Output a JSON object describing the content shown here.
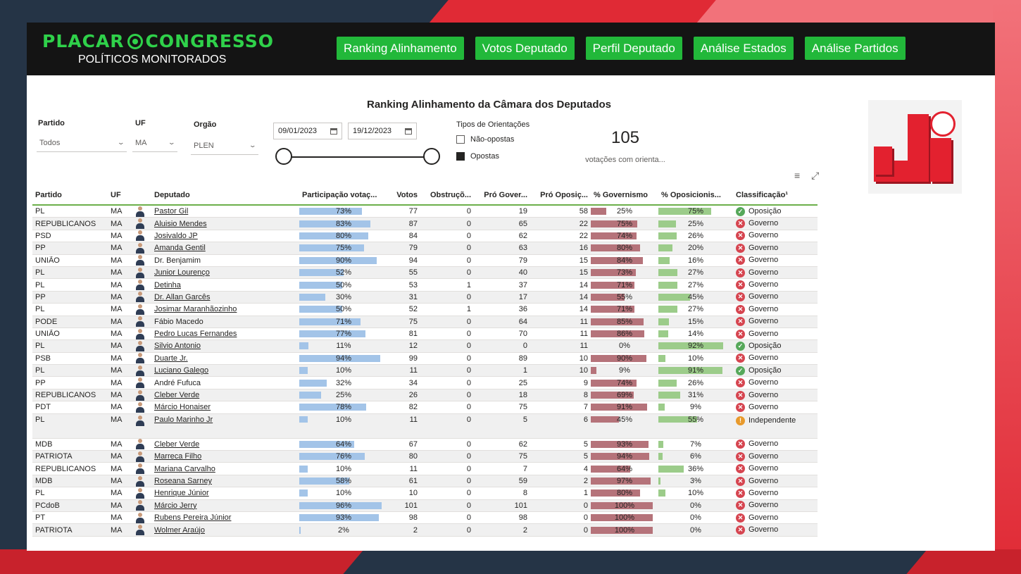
{
  "header": {
    "logo_left": "PLACAR",
    "logo_right": "CONGRESSO",
    "subtitle": "POLÍTICOS MONITORADOS",
    "nav": [
      "Ranking Alinhamento",
      "Votos Deputado",
      "Perfil Deputado",
      "Análise Estados",
      "Análise Partidos"
    ]
  },
  "report": {
    "title": "Ranking Alinhamento da Câmara dos Deputados"
  },
  "filters": {
    "partido_label": "Partido",
    "partido_value": "Todos",
    "uf_label": "UF",
    "uf_value": "MA",
    "orgao_label": "Orgão",
    "orgao_value": "PLEN",
    "date_start": "09/01/2023",
    "date_end": "19/12/2023",
    "slider_start": 0,
    "slider_end": 1,
    "tipos_title": "Tipos de Orientações",
    "tipos": [
      {
        "label": "Não-opostas",
        "checked": false
      },
      {
        "label": "Opostas",
        "checked": true
      }
    ]
  },
  "kpi": {
    "value": "105",
    "label": "votações com orienta..."
  },
  "table": {
    "columns": [
      "Partido",
      "UF",
      "",
      "Deputado",
      "Participação votaç...",
      "Votos",
      "Obstruçõ...",
      "Pró Gover...",
      "Pró Oposiç...",
      "% Governismo",
      "% Oposicionis...",
      "Classificação¹"
    ],
    "rows": [
      {
        "partido": "PL",
        "uf": "MA",
        "dep": "Pastor Gil",
        "part": 73,
        "votos": "77",
        "obs": "0",
        "pgov": "19",
        "popo": "58",
        "gov": 25,
        "opo": 75,
        "class": "Oposição",
        "underline": true
      },
      {
        "partido": "REPUBLICANOS",
        "uf": "MA",
        "dep": "Aluisio Mendes",
        "part": 83,
        "votos": "87",
        "obs": "0",
        "pgov": "65",
        "popo": "22",
        "gov": 75,
        "opo": 25,
        "class": "Governo",
        "underline": true
      },
      {
        "partido": "PSD",
        "uf": "MA",
        "dep": "Josivaldo JP",
        "part": 80,
        "votos": "84",
        "obs": "0",
        "pgov": "62",
        "popo": "22",
        "gov": 74,
        "opo": 26,
        "class": "Governo",
        "underline": true
      },
      {
        "partido": "PP",
        "uf": "MA",
        "dep": "Amanda Gentil",
        "part": 75,
        "votos": "79",
        "obs": "0",
        "pgov": "63",
        "popo": "16",
        "gov": 80,
        "opo": 20,
        "class": "Governo",
        "underline": true
      },
      {
        "partido": "UNIÃO",
        "uf": "MA",
        "dep": "Dr. Benjamim",
        "part": 90,
        "votos": "94",
        "obs": "0",
        "pgov": "79",
        "popo": "15",
        "gov": 84,
        "opo": 16,
        "class": "Governo",
        "underline": false
      },
      {
        "partido": "PL",
        "uf": "MA",
        "dep": "Junior Lourenço",
        "part": 52,
        "votos": "55",
        "obs": "0",
        "pgov": "40",
        "popo": "15",
        "gov": 73,
        "opo": 27,
        "class": "Governo",
        "underline": true
      },
      {
        "partido": "PL",
        "uf": "MA",
        "dep": "Detinha",
        "part": 50,
        "votos": "53",
        "obs": "1",
        "pgov": "37",
        "popo": "14",
        "gov": 71,
        "opo": 27,
        "class": "Governo",
        "underline": true
      },
      {
        "partido": "PP",
        "uf": "MA",
        "dep": "Dr. Allan Garcês",
        "part": 30,
        "votos": "31",
        "obs": "0",
        "pgov": "17",
        "popo": "14",
        "gov": 55,
        "opo": 45,
        "class": "Governo",
        "underline": true
      },
      {
        "partido": "PL",
        "uf": "MA",
        "dep": "Josimar Maranhãozinho",
        "part": 50,
        "votos": "52",
        "obs": "1",
        "pgov": "36",
        "popo": "14",
        "gov": 71,
        "opo": 27,
        "class": "Governo",
        "underline": true
      },
      {
        "partido": "PODE",
        "uf": "MA",
        "dep": "Fábio Macedo",
        "part": 71,
        "votos": "75",
        "obs": "0",
        "pgov": "64",
        "popo": "11",
        "gov": 85,
        "opo": 15,
        "class": "Governo",
        "underline": false
      },
      {
        "partido": "UNIÃO",
        "uf": "MA",
        "dep": "Pedro Lucas Fernandes",
        "part": 77,
        "votos": "81",
        "obs": "0",
        "pgov": "70",
        "popo": "11",
        "gov": 86,
        "opo": 14,
        "class": "Governo",
        "underline": true
      },
      {
        "partido": "PL",
        "uf": "MA",
        "dep": "Silvio Antonio",
        "part": 11,
        "votos": "12",
        "obs": "0",
        "pgov": "0",
        "popo": "11",
        "gov": 0,
        "opo": 92,
        "class": "Oposição",
        "underline": true
      },
      {
        "partido": "PSB",
        "uf": "MA",
        "dep": "Duarte Jr.",
        "part": 94,
        "votos": "99",
        "obs": "0",
        "pgov": "89",
        "popo": "10",
        "gov": 90,
        "opo": 10,
        "class": "Governo",
        "underline": true
      },
      {
        "partido": "PL",
        "uf": "MA",
        "dep": "Luciano Galego",
        "part": 10,
        "votos": "11",
        "obs": "0",
        "pgov": "1",
        "popo": "10",
        "gov": 9,
        "opo": 91,
        "class": "Oposição",
        "underline": true
      },
      {
        "partido": "PP",
        "uf": "MA",
        "dep": "André Fufuca",
        "part": 32,
        "votos": "34",
        "obs": "0",
        "pgov": "25",
        "popo": "9",
        "gov": 74,
        "opo": 26,
        "class": "Governo",
        "underline": false
      },
      {
        "partido": "REPUBLICANOS",
        "uf": "MA",
        "dep": "Cleber Verde",
        "part": 25,
        "votos": "26",
        "obs": "0",
        "pgov": "18",
        "popo": "8",
        "gov": 69,
        "opo": 31,
        "class": "Governo",
        "underline": true
      },
      {
        "partido": "PDT",
        "uf": "MA",
        "dep": "Márcio Honaiser",
        "part": 78,
        "votos": "82",
        "obs": "0",
        "pgov": "75",
        "popo": "7",
        "gov": 91,
        "opo": 9,
        "class": "Governo",
        "underline": true
      },
      {
        "partido": "PL",
        "uf": "MA",
        "dep": "Paulo Marinho Jr",
        "part": 10,
        "votos": "11",
        "obs": "0",
        "pgov": "5",
        "popo": "6",
        "gov": 45,
        "opo": 55,
        "class": "Independente",
        "underline": true
      },
      {
        "partido": "MDB",
        "uf": "MA",
        "dep": "Cleber Verde",
        "part": 64,
        "votos": "67",
        "obs": "0",
        "pgov": "62",
        "popo": "5",
        "gov": 93,
        "opo": 7,
        "class": "Governo",
        "underline": true
      },
      {
        "partido": "PATRIOTA",
        "uf": "MA",
        "dep": "Marreca Filho",
        "part": 76,
        "votos": "80",
        "obs": "0",
        "pgov": "75",
        "popo": "5",
        "gov": 94,
        "opo": 6,
        "class": "Governo",
        "underline": true
      },
      {
        "partido": "REPUBLICANOS",
        "uf": "MA",
        "dep": "Mariana Carvalho",
        "part": 10,
        "votos": "11",
        "obs": "0",
        "pgov": "7",
        "popo": "4",
        "gov": 64,
        "opo": 36,
        "class": "Governo",
        "underline": true
      },
      {
        "partido": "MDB",
        "uf": "MA",
        "dep": "Roseana Sarney",
        "part": 58,
        "votos": "61",
        "obs": "0",
        "pgov": "59",
        "popo": "2",
        "gov": 97,
        "opo": 3,
        "class": "Governo",
        "underline": true
      },
      {
        "partido": "PL",
        "uf": "MA",
        "dep": "Henrique Júnior",
        "part": 10,
        "votos": "10",
        "obs": "0",
        "pgov": "8",
        "popo": "1",
        "gov": 80,
        "opo": 10,
        "class": "Governo",
        "underline": true
      },
      {
        "partido": "PCdoB",
        "uf": "MA",
        "dep": "Márcio Jerry",
        "part": 96,
        "votos": "101",
        "obs": "0",
        "pgov": "101",
        "popo": "0",
        "gov": 100,
        "opo": 0,
        "class": "Governo",
        "underline": true
      },
      {
        "partido": "PT",
        "uf": "MA",
        "dep": "Rubens Pereira Júnior",
        "part": 93,
        "votos": "98",
        "obs": "0",
        "pgov": "98",
        "popo": "0",
        "gov": 100,
        "opo": 0,
        "class": "Governo",
        "underline": true
      },
      {
        "partido": "PATRIOTA",
        "uf": "MA",
        "dep": "Wolmer Araújo",
        "part": 2,
        "votos": "2",
        "obs": "0",
        "pgov": "2",
        "popo": "0",
        "gov": 100,
        "opo": 0,
        "class": "Governo",
        "underline": true
      }
    ]
  },
  "colors": {
    "accent": "#22b83a",
    "governo": "#d64550",
    "oposicao": "#56a85a",
    "independente": "#e89a2c"
  }
}
